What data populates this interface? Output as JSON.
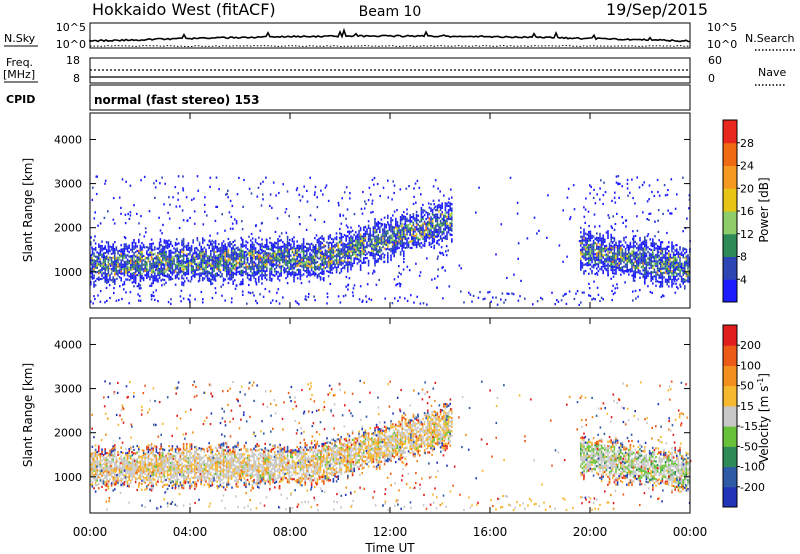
{
  "header": {
    "title": "Hokkaido West (fitACF)",
    "beam": "Beam 10",
    "date": "19/Sep/2015"
  },
  "noise_panel": {
    "left_label": "N.Sky",
    "right_label": "N.Search",
    "left_ticks": [
      "10^5",
      "10^0"
    ],
    "right_ticks": [
      "10^5",
      "10^0"
    ]
  },
  "freq_panel": {
    "left_label_1": "Freq.",
    "left_label_2": "[MHz]",
    "left_ticks": [
      "18",
      "8"
    ],
    "right_label": "Nave",
    "right_ticks": [
      "60",
      "0"
    ]
  },
  "cpid_panel": {
    "label": "CPID",
    "text": "normal (fast stereo) 153"
  },
  "range_axis": {
    "label": "Slant Range [km]",
    "ticks": [
      "1000",
      "2000",
      "3000",
      "4000"
    ]
  },
  "time_axis": {
    "label": "Time UT",
    "ticks": [
      "00:00",
      "04:00",
      "08:00",
      "12:00",
      "16:00",
      "20:00",
      "00:00"
    ]
  },
  "power_scale": {
    "label": "Power [dB]",
    "ticks": [
      "4",
      "8",
      "12",
      "16",
      "20",
      "24",
      "28"
    ],
    "colors": [
      "#1c1cff",
      "#2e46b4",
      "#2e8b57",
      "#8fcc6a",
      "#e6c514",
      "#f59a1f",
      "#f06a14",
      "#e8281e"
    ]
  },
  "velocity_scale": {
    "label": "Velocity [m s",
    "label_sup": "-1",
    "label_end": "]",
    "ticks": [
      "200",
      "100",
      "50",
      "15",
      "-15",
      "-50",
      "-100",
      "-200"
    ],
    "colors": [
      "#2234b8",
      "#2f5aa6",
      "#2e8b57",
      "#67c23a",
      "#c8c8c8",
      "#f5b82e",
      "#f2901e",
      "#ec5a18",
      "#e11e1e"
    ]
  },
  "chart_data": {
    "type": "heatmap",
    "x_range_hours": [
      0,
      24
    ],
    "y_range_km": [
      180,
      4600
    ],
    "power_panel": {
      "echo_bands": [
        {
          "t_start": 0,
          "t_end": 9,
          "range_start_km": 1200,
          "range_end_km": 1300
        },
        {
          "t_start": 9,
          "t_end": 14.5,
          "range_start_km": 1300,
          "range_end_km": 2200
        },
        {
          "t_start": 19.6,
          "t_end": 24,
          "range_start_km": 1500,
          "range_end_km": 1100
        }
      ]
    },
    "velocity_panel": {
      "echo_bands": [
        {
          "t_start": 0,
          "t_end": 9,
          "range_start_km": 1200,
          "range_end_km": 1300
        },
        {
          "t_start": 9,
          "t_end": 14.5,
          "range_start_km": 1300,
          "range_end_km": 2200
        },
        {
          "t_start": 19.6,
          "t_end": 24,
          "range_start_km": 1500,
          "range_end_km": 1100
        }
      ]
    }
  }
}
